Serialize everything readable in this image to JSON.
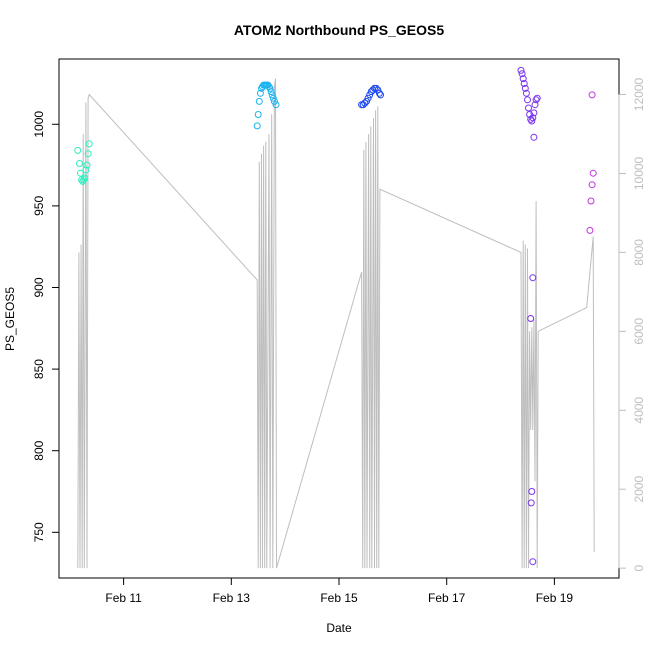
{
  "chart_data": {
    "type": "scatter",
    "title": "ATOM2 Northbound PS_GEOS5",
    "xlabel": "Date",
    "ylabel": "PS_GEOS5",
    "x_ticks": [
      {
        "day": 11,
        "label": "Feb 11"
      },
      {
        "day": 13,
        "label": "Feb 13"
      },
      {
        "day": 15,
        "label": "Feb 15"
      },
      {
        "day": 17,
        "label": "Feb 17"
      },
      {
        "day": 19,
        "label": "Feb 19"
      }
    ],
    "xlim": [
      9.8,
      20.2
    ],
    "ylim": [
      722,
      1040
    ],
    "y_ticks": [
      750,
      800,
      850,
      900,
      950,
      1000
    ],
    "y2lim": [
      -250,
      12900
    ],
    "y2_ticks": [
      0,
      2000,
      4000,
      6000,
      8000,
      10000,
      12000
    ],
    "grid": false,
    "colors": {
      "line": "#bebebe",
      "axis": "#000000",
      "series": [
        "#2cf0c0",
        "#1ab4f0",
        "#1a46f0",
        "#7a34f0",
        "#c534e0"
      ]
    },
    "series": [
      {
        "color_index": 0,
        "points": [
          [
            10.15,
            984
          ],
          [
            10.18,
            976
          ],
          [
            10.2,
            970
          ],
          [
            10.22,
            966
          ],
          [
            10.24,
            965
          ],
          [
            10.26,
            966
          ],
          [
            10.28,
            967
          ],
          [
            10.3,
            972
          ],
          [
            10.32,
            975
          ],
          [
            10.34,
            982
          ],
          [
            10.36,
            988
          ]
        ]
      },
      {
        "color_index": 1,
        "points": [
          [
            13.48,
            999
          ],
          [
            13.5,
            1006
          ],
          [
            13.52,
            1014
          ],
          [
            13.54,
            1019
          ],
          [
            13.56,
            1022
          ],
          [
            13.58,
            1023
          ],
          [
            13.6,
            1024
          ],
          [
            13.62,
            1024
          ],
          [
            13.64,
            1024
          ],
          [
            13.66,
            1024
          ],
          [
            13.68,
            1024
          ],
          [
            13.7,
            1023
          ],
          [
            13.72,
            1022
          ],
          [
            13.74,
            1020
          ],
          [
            13.76,
            1018
          ],
          [
            13.78,
            1016
          ],
          [
            13.8,
            1014
          ],
          [
            13.83,
            1012
          ]
        ]
      },
      {
        "color_index": 2,
        "points": [
          [
            15.42,
            1012
          ],
          [
            15.45,
            1012
          ],
          [
            15.48,
            1013
          ],
          [
            15.51,
            1014
          ],
          [
            15.54,
            1016
          ],
          [
            15.57,
            1018
          ],
          [
            15.6,
            1020
          ],
          [
            15.63,
            1021
          ],
          [
            15.66,
            1022
          ],
          [
            15.69,
            1022
          ],
          [
            15.72,
            1021
          ],
          [
            15.75,
            1019
          ],
          [
            15.77,
            1018
          ]
        ]
      },
      {
        "color_index": 3,
        "points": [
          [
            18.38,
            1033
          ],
          [
            18.4,
            1031
          ],
          [
            18.42,
            1028
          ],
          [
            18.44,
            1025
          ],
          [
            18.46,
            1022
          ],
          [
            18.48,
            1019
          ],
          [
            18.5,
            1015
          ],
          [
            18.52,
            1010
          ],
          [
            18.54,
            1006
          ],
          [
            18.56,
            1003
          ],
          [
            18.58,
            1002
          ],
          [
            18.6,
            1004
          ],
          [
            18.62,
            1007
          ],
          [
            18.64,
            1012
          ],
          [
            18.66,
            1015
          ],
          [
            18.68,
            1016
          ],
          [
            18.62,
            992
          ],
          [
            18.6,
            906
          ],
          [
            18.56,
            881
          ],
          [
            18.58,
            775
          ],
          [
            18.57,
            768
          ],
          [
            18.6,
            732
          ]
        ]
      },
      {
        "color_index": 4,
        "points": [
          [
            19.7,
            1018
          ],
          [
            19.72,
            970
          ],
          [
            19.7,
            963
          ],
          [
            19.68,
            953
          ],
          [
            19.66,
            935
          ]
        ]
      }
    ],
    "line_series": {
      "axis": "right",
      "points": [
        [
          10.15,
          0
        ],
        [
          10.17,
          8000
        ],
        [
          10.19,
          0
        ],
        [
          10.21,
          8200
        ],
        [
          10.23,
          0
        ],
        [
          10.25,
          11000
        ],
        [
          10.27,
          0
        ],
        [
          10.3,
          11800
        ],
        [
          10.32,
          0
        ],
        [
          10.34,
          11900
        ],
        [
          10.36,
          12000
        ],
        [
          13.48,
          7300
        ],
        [
          13.5,
          0
        ],
        [
          13.52,
          10300
        ],
        [
          13.54,
          0
        ],
        [
          13.56,
          10500
        ],
        [
          13.58,
          0
        ],
        [
          13.6,
          10700
        ],
        [
          13.62,
          0
        ],
        [
          13.64,
          10800
        ],
        [
          13.66,
          0
        ],
        [
          13.7,
          11000
        ],
        [
          13.72,
          0
        ],
        [
          13.75,
          11500
        ],
        [
          13.77,
          0
        ],
        [
          13.8,
          12200
        ],
        [
          13.82,
          12400
        ],
        [
          13.84,
          0
        ],
        [
          15.42,
          7500
        ],
        [
          15.44,
          0
        ],
        [
          15.46,
          10600
        ],
        [
          15.48,
          0
        ],
        [
          15.5,
          10800
        ],
        [
          15.52,
          0
        ],
        [
          15.55,
          11000
        ],
        [
          15.57,
          0
        ],
        [
          15.59,
          11200
        ],
        [
          15.61,
          0
        ],
        [
          15.64,
          11400
        ],
        [
          15.66,
          0
        ],
        [
          15.68,
          11600
        ],
        [
          15.7,
          0
        ],
        [
          15.72,
          11700
        ],
        [
          15.74,
          0
        ],
        [
          15.76,
          9600
        ],
        [
          18.38,
          8000
        ],
        [
          18.4,
          0
        ],
        [
          18.42,
          8300
        ],
        [
          18.44,
          0
        ],
        [
          18.46,
          8200
        ],
        [
          18.48,
          0
        ],
        [
          18.5,
          8100
        ],
        [
          18.52,
          0
        ],
        [
          18.54,
          6000
        ],
        [
          18.56,
          3500
        ],
        [
          18.58,
          6100
        ],
        [
          18.6,
          3500
        ],
        [
          18.62,
          6300
        ],
        [
          18.64,
          2200
        ],
        [
          18.66,
          9300
        ],
        [
          18.68,
          0
        ],
        [
          18.7,
          6000
        ],
        [
          19.6,
          6600
        ],
        [
          19.72,
          8400
        ],
        [
          19.74,
          400
        ]
      ]
    }
  }
}
